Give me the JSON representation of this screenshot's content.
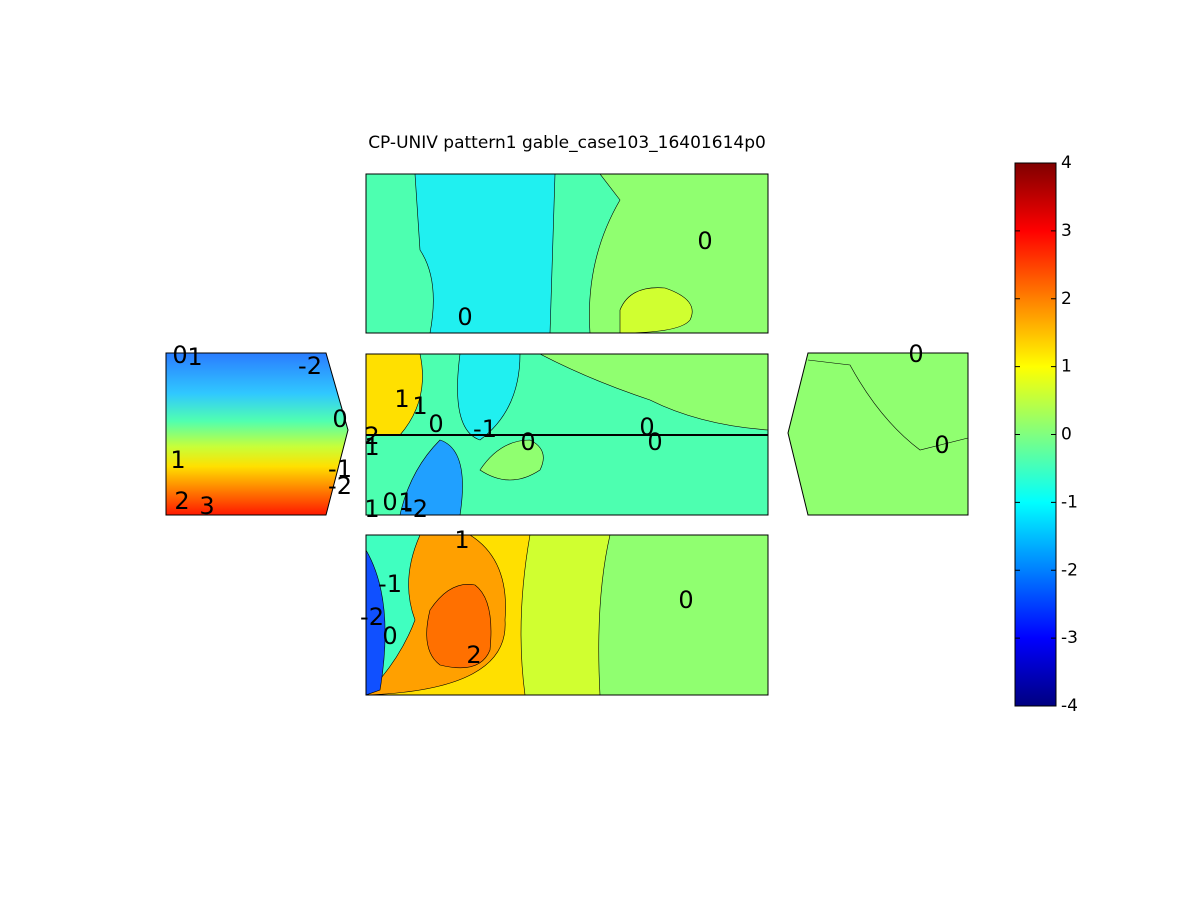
{
  "chart_data": {
    "type": "contour",
    "title": "CP-UNIV pattern1 gable_case103_16401614p0",
    "colorbar": {
      "clim": [
        -4,
        4
      ],
      "ticks": [
        -4,
        -3,
        -2,
        -1,
        0,
        1,
        2,
        3,
        4
      ],
      "colormap": "jet"
    },
    "panels": [
      {
        "contour_labels": [
          0,
          0
        ]
      },
      {
        "contour_labels": [
          0,
          1,
          -2,
          0,
          1,
          -1,
          -2,
          2,
          3
        ]
      },
      {
        "contour_labels": [
          1,
          1,
          0,
          -1,
          0,
          0,
          0,
          2,
          1,
          1,
          0,
          1,
          -2
        ]
      },
      {
        "contour_labels": [
          0,
          0
        ]
      },
      {
        "contour_labels": [
          1,
          -1,
          -2,
          0,
          2,
          0
        ]
      }
    ]
  }
}
